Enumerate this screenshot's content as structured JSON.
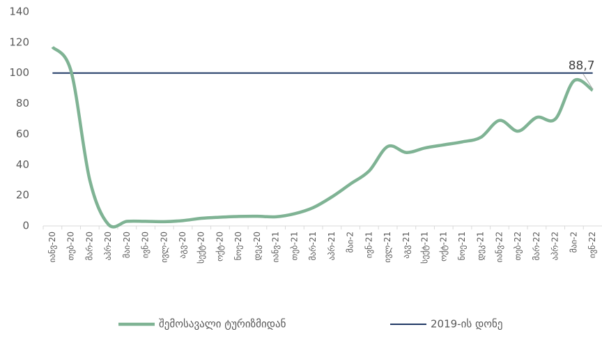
{
  "chart_data": {
    "type": "line",
    "categories": [
      "იანვ-20",
      "თებ-20",
      "მარ-20",
      "აპრ-20",
      "მაი-20",
      "ივნ-20",
      "ივლ-20",
      "აგვ-20",
      "სექტ-20",
      "ოქტ-20",
      "ნოე-20",
      "დეკ-20",
      "იანვ-21",
      "თებ-21",
      "მარ-21",
      "აპრ-21",
      "მაი-2",
      "ივნ-21",
      "ივლ-21",
      "აგვ-21",
      "სექტ-21",
      "ოქტ-21",
      "ნოე-21",
      "დეკ-21",
      "იანვ-22",
      "თებ-22",
      "მარ-22",
      "აპრ-22",
      "მაი-2",
      "ივნ-22"
    ],
    "series": [
      {
        "name": "შემოსავალი ტურიზმიდან",
        "color": "#7fb394",
        "values": [
          117,
          101,
          30,
          1,
          3,
          3,
          2.8,
          3.5,
          5,
          5.7,
          6.2,
          6.3,
          6,
          8,
          12,
          19,
          27.5,
          36,
          52,
          48,
          51,
          53,
          55,
          58,
          69,
          62,
          71,
          70,
          95,
          88.7
        ],
        "value_labels": [
          null,
          null,
          null,
          null,
          null,
          null,
          null,
          null,
          null,
          null,
          null,
          null,
          null,
          null,
          null,
          null,
          null,
          null,
          null,
          null,
          null,
          null,
          null,
          null,
          null,
          null,
          null,
          null,
          null,
          "88,7"
        ]
      }
    ],
    "reference_lines": [
      {
        "name": "2019-ის დონე",
        "value": 100,
        "color": "#1f3864"
      }
    ],
    "ylim": [
      0,
      140
    ],
    "yticks": [
      0,
      20,
      40,
      60,
      80,
      100,
      120,
      140
    ],
    "grid": false,
    "legend": "bottom"
  }
}
